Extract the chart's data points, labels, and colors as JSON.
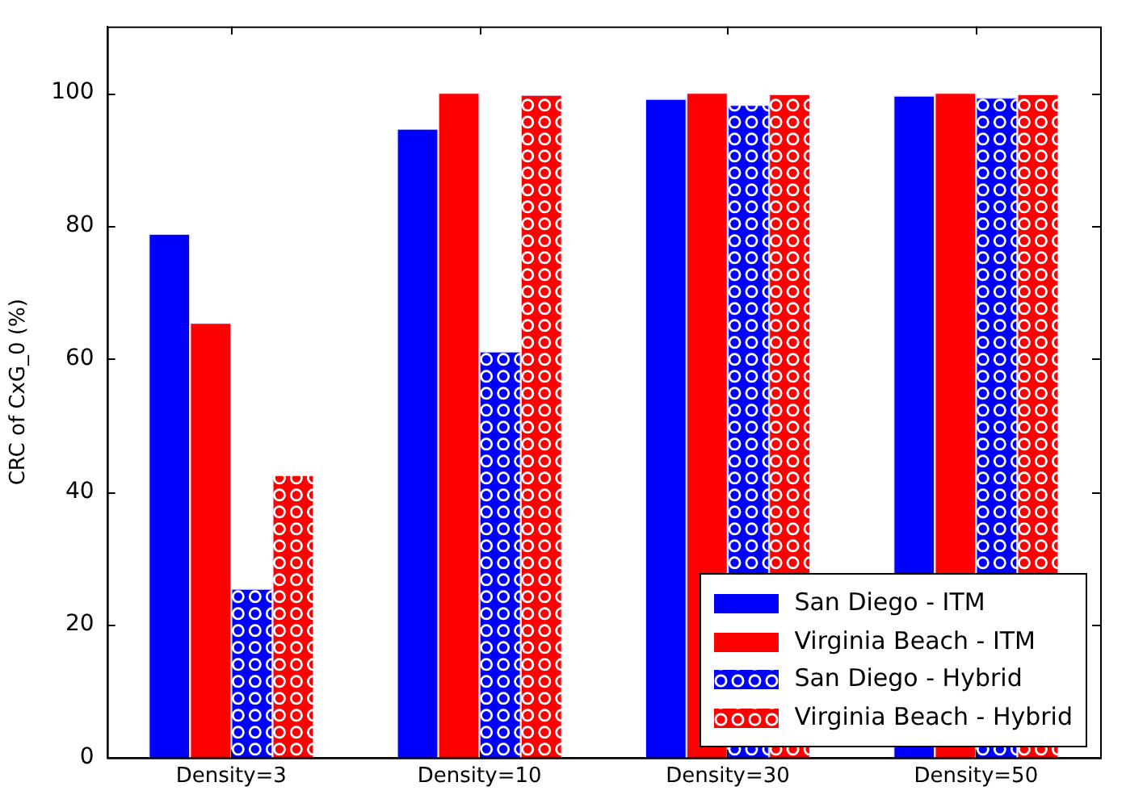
{
  "chart_data": {
    "type": "bar",
    "ylabel": "CRC of CxG_0 (%)",
    "categories": [
      "Density=3",
      "Density=10",
      "Density=30",
      "Density=50"
    ],
    "series": [
      {
        "name": "San Diego - ITM",
        "color": "#0000ff",
        "values": [
          78.8,
          94.6,
          99.1,
          99.6
        ]
      },
      {
        "name": "Virginia Beach - ITM",
        "color": "#ff0000",
        "values": [
          65.4,
          100,
          100,
          100
        ]
      },
      {
        "name": "San Diego - Hybrid",
        "color": "#0000ff",
        "values": [
          25.4,
          61.1,
          98.2,
          99.3
        ]
      },
      {
        "name": "Virginia Beach - Hybrid",
        "color": "#ff0000",
        "values": [
          42.5,
          99.7,
          99.8,
          99.8
        ]
      }
    ],
    "ylim": [
      0,
      110
    ],
    "yticks": [
      0,
      20,
      40,
      60,
      80,
      100
    ],
    "grid": false,
    "legend": "bottom right"
  }
}
